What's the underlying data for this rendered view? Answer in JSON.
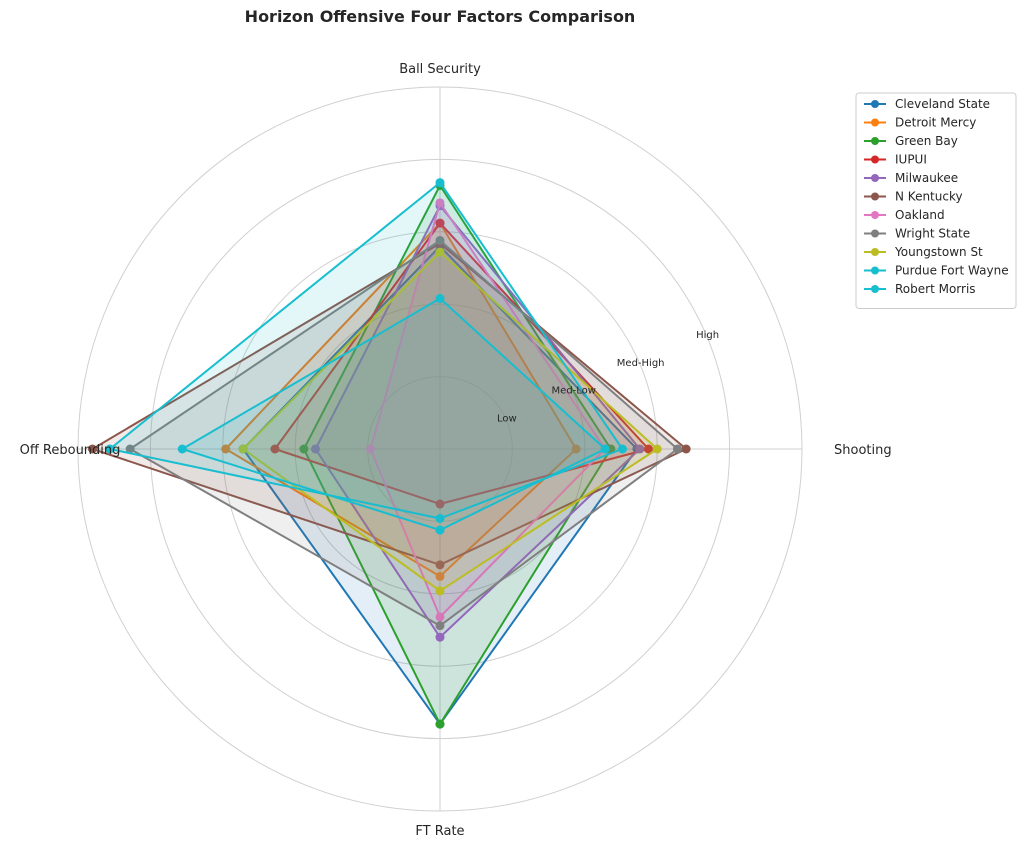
{
  "chart_data": {
    "type": "radar",
    "title": "Horizon Offensive Four Factors Comparison",
    "axes": [
      "Shooting",
      "Ball Security",
      "Off Rebounding",
      "FT Rate"
    ],
    "ring_labels": [
      "Low",
      "Med-Low",
      "Med-High",
      "High"
    ],
    "rlim": [
      0,
      1.25
    ],
    "grid": true,
    "legend_position": "top-right",
    "series": [
      {
        "name": "Cleveland State",
        "color": "#1f77b4",
        "values": [
          0.68,
          0.7,
          0.68,
          0.95
        ]
      },
      {
        "name": "Detroit Mercy",
        "color": "#ff7f0e",
        "values": [
          0.47,
          0.78,
          0.74,
          0.44
        ]
      },
      {
        "name": "Green Bay",
        "color": "#2ca02c",
        "values": [
          0.59,
          0.91,
          0.47,
          0.95
        ]
      },
      {
        "name": "IUPUI",
        "color": "#d62728",
        "values": [
          0.72,
          0.78,
          0.57,
          0.19
        ]
      },
      {
        "name": "Milwaukee",
        "color": "#9467bd",
        "values": [
          0.69,
          0.84,
          0.43,
          0.65
        ]
      },
      {
        "name": "N Kentucky",
        "color": "#8c564b",
        "values": [
          0.85,
          0.71,
          1.2,
          0.4
        ]
      },
      {
        "name": "Oakland",
        "color": "#e377c2",
        "values": [
          0.57,
          0.85,
          0.24,
          0.58
        ]
      },
      {
        "name": "Wright State",
        "color": "#7f7f7f",
        "values": [
          0.82,
          0.72,
          1.07,
          0.61
        ]
      },
      {
        "name": "Youngstown St",
        "color": "#bcbd22",
        "values": [
          0.75,
          0.68,
          0.68,
          0.49
        ]
      },
      {
        "name": "Purdue Fort Wayne",
        "color": "#17becf",
        "values": [
          0.63,
          0.92,
          1.14,
          0.24
        ]
      },
      {
        "name": "Robert Morris",
        "color": "#17becf",
        "values": [
          0.57,
          0.52,
          0.89,
          0.28
        ]
      }
    ]
  }
}
